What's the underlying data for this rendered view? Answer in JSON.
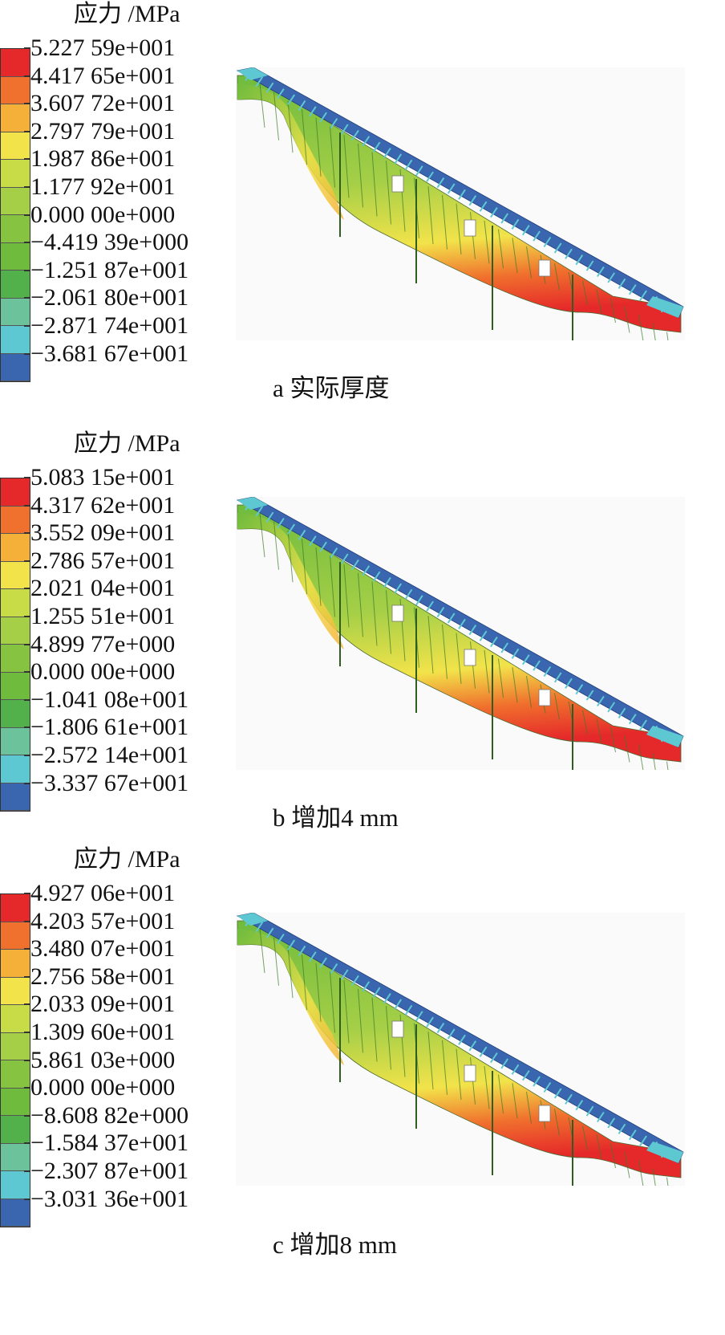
{
  "colors": {
    "scale": [
      "#e5282a",
      "#f0702d",
      "#f5b03a",
      "#f2e34a",
      "#c8dc47",
      "#a5cf47",
      "#86c340",
      "#6fbb3d",
      "#52b14a",
      "#6cc39b",
      "#5ec8d2",
      "#3a66b0"
    ]
  },
  "panels": [
    {
      "legend_title": "应力 /MPa",
      "ticks": [
        "5.227 59e+001",
        "4.417 65e+001",
        "3.607 72e+001",
        "2.797 79e+001",
        "1.987 86e+001",
        "1.177 92e+001",
        "0.000 00e+000",
        "−4.419 39e+000",
        "−1.251 87e+001",
        "−2.061 80e+001",
        "−2.871 74e+001",
        "−3.681 67e+001"
      ],
      "caption": "a  实际厚度"
    },
    {
      "legend_title": "应力 /MPa",
      "ticks": [
        "5.083 15e+001",
        "4.317 62e+001",
        "3.552 09e+001",
        "2.786 57e+001",
        "2.021 04e+001",
        "1.255 51e+001",
        "4.899 77e+000",
        "0.000 00e+000",
        "−1.041 08e+001",
        "−1.806 61e+001",
        "−2.572 14e+001",
        "−3.337 67e+001"
      ],
      "caption": "b  增加4 mm"
    },
    {
      "legend_title": "应力 /MPa",
      "ticks": [
        "4.927 06e+001",
        "4.203 57e+001",
        "3.480 07e+001",
        "2.756 58e+001",
        "2.033 09e+001",
        "1.309 60e+001",
        "5.861 03e+000",
        "0.000 00e+000",
        "−8.608 82e+000",
        "−1.584 37e+001",
        "−2.307 87e+001",
        "−3.031 36e+001"
      ],
      "caption": "c  增加8 mm"
    }
  ]
}
